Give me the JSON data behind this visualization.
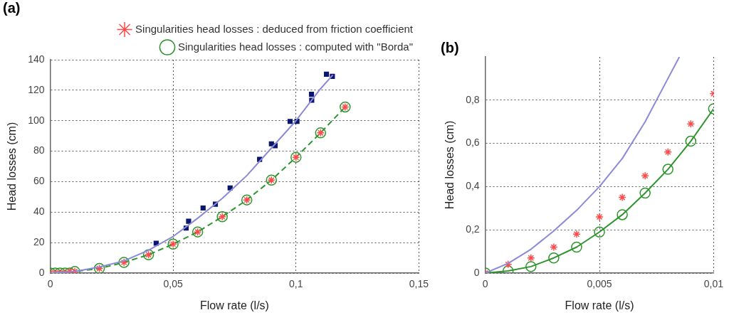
{
  "chart_data": [
    {
      "type": "scatter",
      "title": "(a)",
      "xlabel": "Flow rate (l/s)",
      "ylabel": "Head losses (cm)",
      "xlim": [
        0,
        0.15
      ],
      "xticks": [
        0,
        {
          "value": 0.05,
          "label": "0,05"
        },
        {
          "value": 0.1,
          "label": "0,1"
        },
        {
          "value": 0.15,
          "label": "0,15"
        }
      ],
      "ylim": [
        0,
        140
      ],
      "yticks": [
        0,
        20,
        40,
        60,
        80,
        100,
        120,
        140
      ],
      "grid": true,
      "legend": "top",
      "series": [
        {
          "type": "line",
          "color": "#8a8ad6",
          "marker": "none",
          "line_style": "solid",
          "x": [
            0,
            0.01,
            0.02,
            0.03,
            0.04,
            0.05,
            0.06,
            0.07,
            0.08,
            0.09,
            0.1,
            0.11,
            0.115
          ],
          "values": [
            0,
            1,
            4,
            8,
            15,
            24,
            36,
            49,
            64,
            82,
            100,
            121,
            130
          ]
        },
        {
          "type": "scatter",
          "color": "#0b1670",
          "marker": "square",
          "x": [
            0.0431,
            0.0553,
            0.0563,
            0.0622,
            0.0672,
            0.0732,
            0.0852,
            0.09,
            0.0915,
            0.0976,
            0.1004,
            0.1063,
            0.1064,
            0.1124,
            0.1148
          ],
          "values": [
            19.6,
            29.5,
            34,
            42.7,
            45.2,
            55.9,
            74.6,
            84.8,
            83.6,
            99.5,
            99.6,
            117.3,
            113.4,
            130.5,
            129.1
          ]
        },
        {
          "type": "scatter",
          "name": "Singularities head losses : deduced from friction coefficient",
          "color": "#ff4a4a",
          "marker": "cross",
          "x": [
            0,
            0.002,
            0.004,
            0.006,
            0.008,
            0.01,
            0.02,
            0.03,
            0.04,
            0.05,
            0.06,
            0.07,
            0.08,
            0.09,
            0.1,
            0.11,
            0.12
          ],
          "values": [
            0,
            0,
            0,
            0,
            1,
            1,
            3,
            7,
            12,
            19,
            27,
            37,
            48,
            61,
            76,
            92,
            109
          ]
        },
        {
          "type": "line",
          "name": "Singularities head losses : computed with \"Borda\"",
          "color": "#2e952e",
          "marker": "circle",
          "line_style": "dashed",
          "x": [
            0,
            0.002,
            0.004,
            0.006,
            0.008,
            0.01,
            0.02,
            0.03,
            0.04,
            0.05,
            0.06,
            0.07,
            0.08,
            0.09,
            0.1,
            0.11,
            0.12
          ],
          "values": [
            0,
            0,
            0,
            0,
            0,
            1,
            3,
            7,
            12,
            19,
            27,
            37,
            48,
            61,
            76,
            92,
            109
          ]
        }
      ]
    },
    {
      "type": "scatter",
      "title": "(b)",
      "xlabel": "Flow rate (l/s)",
      "ylabel": "Head losses (cm)",
      "xlim": [
        0,
        0.01
      ],
      "xticks": [
        0,
        {
          "value": 0.005,
          "label": "0,005"
        },
        {
          "value": 0.01,
          "label": "0,01"
        }
      ],
      "ylim": [
        0,
        1
      ],
      "yticks": [
        0,
        {
          "value": 0.2,
          "label": "0,2"
        },
        {
          "value": 0.4,
          "label": "0,4"
        },
        {
          "value": 0.6,
          "label": "0,6"
        },
        {
          "value": 0.8,
          "label": "0,8"
        }
      ],
      "grid": true,
      "series": [
        {
          "type": "line",
          "color": "#8a8ad6",
          "marker": "none",
          "line_style": "solid",
          "x": [
            0,
            0.001,
            0.002,
            0.003,
            0.004,
            0.005,
            0.006,
            0.007,
            0.008,
            0.0085
          ],
          "values": [
            0,
            0.045,
            0.11,
            0.195,
            0.29,
            0.4,
            0.53,
            0.7,
            0.9,
            1
          ]
        },
        {
          "type": "scatter",
          "color": "#ff4a4a",
          "marker": "cross",
          "x": [
            0,
            0.001,
            0.002,
            0.003,
            0.004,
            0.005,
            0.006,
            0.007,
            0.008,
            0.009,
            0.01
          ],
          "values": [
            0,
            0.04,
            0.07,
            0.12,
            0.18,
            0.26,
            0.35,
            0.45,
            0.56,
            0.69,
            0.83
          ]
        },
        {
          "type": "line",
          "color": "#2e952e",
          "marker": "circle",
          "line_style": "solid",
          "x": [
            0,
            0.001,
            0.002,
            0.003,
            0.004,
            0.005,
            0.006,
            0.007,
            0.008,
            0.009,
            0.01
          ],
          "values": [
            0,
            0.01,
            0.03,
            0.07,
            0.12,
            0.19,
            0.27,
            0.37,
            0.48,
            0.61,
            0.76
          ]
        }
      ]
    }
  ]
}
